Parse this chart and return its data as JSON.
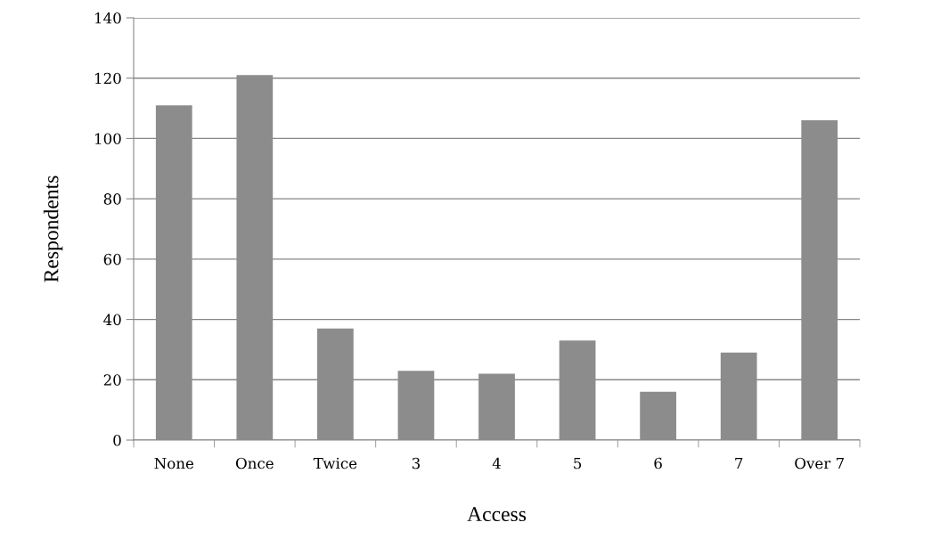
{
  "chart_data": {
    "type": "bar",
    "xlabel": "Access",
    "ylabel": "Respondents",
    "categories": [
      "None",
      "Once",
      "Twice",
      "3",
      "4",
      "5",
      "6",
      "7",
      "Over 7"
    ],
    "values": [
      111,
      121,
      37,
      23,
      22,
      33,
      16,
      29,
      106
    ],
    "color": "#8c8c8c",
    "ylim": [
      0,
      140
    ],
    "yticks": [
      0,
      20,
      40,
      60,
      80,
      100,
      120,
      140
    ],
    "grid": "y"
  }
}
